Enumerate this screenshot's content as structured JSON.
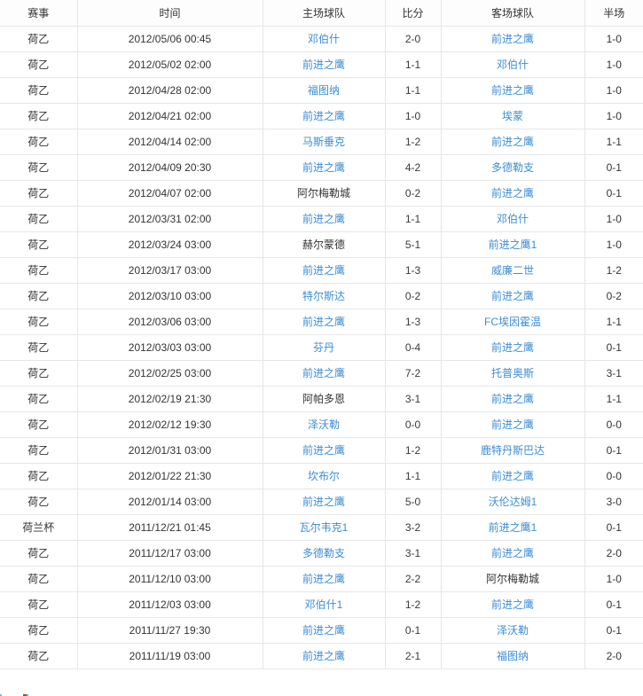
{
  "colors": {
    "link_blue": "#3c8dd5",
    "text_dark": "#333333",
    "border_gray": "#e6e6e6"
  },
  "table": {
    "columns": [
      {
        "key": "league",
        "label": "赛事"
      },
      {
        "key": "time",
        "label": "时间"
      },
      {
        "key": "home",
        "label": "主场球队"
      },
      {
        "key": "score",
        "label": "比分"
      },
      {
        "key": "away",
        "label": "客场球队"
      },
      {
        "key": "half",
        "label": "半场"
      }
    ],
    "rows": [
      {
        "league": "荷乙",
        "time": "2012/05/06 00:45",
        "home": "邓伯什",
        "home_link": true,
        "score": "2-0",
        "away": "前进之鹰",
        "away_link": true,
        "half": "1-0"
      },
      {
        "league": "荷乙",
        "time": "2012/05/02 02:00",
        "home": "前进之鹰",
        "home_link": true,
        "score": "1-1",
        "away": "邓伯什",
        "away_link": true,
        "half": "1-0"
      },
      {
        "league": "荷乙",
        "time": "2012/04/28 02:00",
        "home": "福图纳",
        "home_link": true,
        "score": "1-1",
        "away": "前进之鹰",
        "away_link": true,
        "half": "1-0"
      },
      {
        "league": "荷乙",
        "time": "2012/04/21 02:00",
        "home": "前进之鹰",
        "home_link": true,
        "score": "1-0",
        "away": "埃蒙",
        "away_link": true,
        "half": "1-0"
      },
      {
        "league": "荷乙",
        "time": "2012/04/14 02:00",
        "home": "马斯垂克",
        "home_link": true,
        "score": "1-2",
        "away": "前进之鹰",
        "away_link": true,
        "half": "1-1"
      },
      {
        "league": "荷乙",
        "time": "2012/04/09 20:30",
        "home": "前进之鹰",
        "home_link": true,
        "score": "4-2",
        "away": "多德勒支",
        "away_link": true,
        "half": "0-1"
      },
      {
        "league": "荷乙",
        "time": "2012/04/07 02:00",
        "home": "阿尔梅勒城",
        "home_link": false,
        "score": "0-2",
        "away": "前进之鹰",
        "away_link": true,
        "half": "0-1"
      },
      {
        "league": "荷乙",
        "time": "2012/03/31 02:00",
        "home": "前进之鹰",
        "home_link": true,
        "score": "1-1",
        "away": "邓伯什",
        "away_link": true,
        "half": "1-0"
      },
      {
        "league": "荷乙",
        "time": "2012/03/24 03:00",
        "home": "赫尔蒙德",
        "home_link": false,
        "score": "5-1",
        "away": "前进之鹰1",
        "away_link": true,
        "half": "1-0"
      },
      {
        "league": "荷乙",
        "time": "2012/03/17 03:00",
        "home": "前进之鹰",
        "home_link": true,
        "score": "1-3",
        "away": "威廉二世",
        "away_link": true,
        "half": "1-2"
      },
      {
        "league": "荷乙",
        "time": "2012/03/10 03:00",
        "home": "特尔斯达",
        "home_link": true,
        "score": "0-2",
        "away": "前进之鹰",
        "away_link": true,
        "half": "0-2"
      },
      {
        "league": "荷乙",
        "time": "2012/03/06 03:00",
        "home": "前进之鹰",
        "home_link": true,
        "score": "1-3",
        "away": "FC埃因霍温",
        "away_link": true,
        "half": "1-1"
      },
      {
        "league": "荷乙",
        "time": "2012/03/03 03:00",
        "home": "芬丹",
        "home_link": true,
        "score": "0-4",
        "away": "前进之鹰",
        "away_link": true,
        "half": "0-1"
      },
      {
        "league": "荷乙",
        "time": "2012/02/25 03:00",
        "home": "前进之鹰",
        "home_link": true,
        "score": "7-2",
        "away": "托普奥斯",
        "away_link": true,
        "half": "3-1"
      },
      {
        "league": "荷乙",
        "time": "2012/02/19 21:30",
        "home": "阿帕多恩",
        "home_link": false,
        "score": "3-1",
        "away": "前进之鹰",
        "away_link": true,
        "half": "1-1"
      },
      {
        "league": "荷乙",
        "time": "2012/02/12 19:30",
        "home": "泽沃勒",
        "home_link": true,
        "score": "0-0",
        "away": "前进之鹰",
        "away_link": true,
        "half": "0-0"
      },
      {
        "league": "荷乙",
        "time": "2012/01/31 03:00",
        "home": "前进之鹰",
        "home_link": true,
        "score": "1-2",
        "away": "鹿特丹斯巴达",
        "away_link": true,
        "half": "0-1"
      },
      {
        "league": "荷乙",
        "time": "2012/01/22 21:30",
        "home": "坎布尔",
        "home_link": true,
        "score": "1-1",
        "away": "前进之鹰",
        "away_link": true,
        "half": "0-0"
      },
      {
        "league": "荷乙",
        "time": "2012/01/14 03:00",
        "home": "前进之鹰",
        "home_link": true,
        "score": "5-0",
        "away": "沃伦达姆1",
        "away_link": true,
        "half": "3-0"
      },
      {
        "league": "荷兰杯",
        "time": "2011/12/21 01:45",
        "home": "瓦尔韦克1",
        "home_link": true,
        "score": "3-2",
        "away": "前进之鹰1",
        "away_link": true,
        "half": "0-1"
      },
      {
        "league": "荷乙",
        "time": "2011/12/17 03:00",
        "home": "多德勒支",
        "home_link": true,
        "score": "3-1",
        "away": "前进之鹰",
        "away_link": true,
        "half": "2-0"
      },
      {
        "league": "荷乙",
        "time": "2011/12/10 03:00",
        "home": "前进之鹰",
        "home_link": true,
        "score": "2-2",
        "away": "阿尔梅勒城",
        "away_link": false,
        "half": "1-0"
      },
      {
        "league": "荷乙",
        "time": "2011/12/03 03:00",
        "home": "邓伯什1",
        "home_link": true,
        "score": "1-2",
        "away": "前进之鹰",
        "away_link": true,
        "half": "0-1"
      },
      {
        "league": "荷乙",
        "time": "2011/11/27 19:30",
        "home": "前进之鹰",
        "home_link": true,
        "score": "0-1",
        "away": "泽沃勒",
        "away_link": true,
        "half": "0-1"
      },
      {
        "league": "荷乙",
        "time": "2011/11/19 03:00",
        "home": "前进之鹰",
        "home_link": true,
        "score": "2-1",
        "away": "福图纳",
        "away_link": true,
        "half": "2-0"
      }
    ]
  }
}
